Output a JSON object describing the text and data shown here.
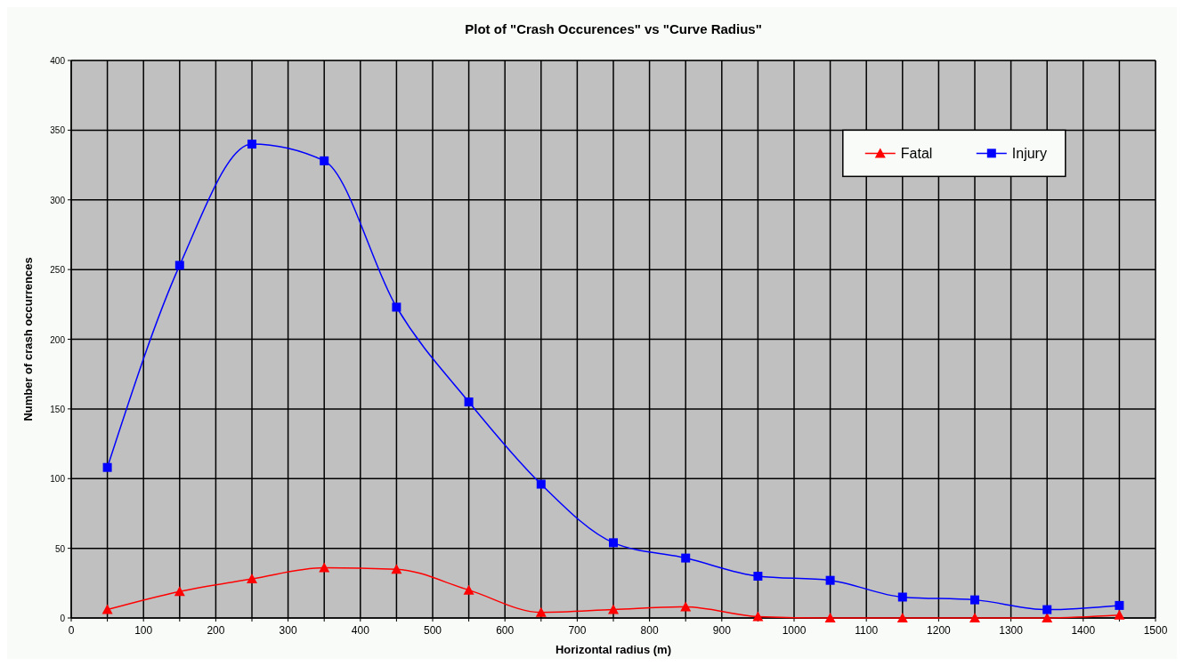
{
  "chart_data": {
    "type": "line",
    "title": "Plot of \"Crash Occurences\" vs \"Curve Radius\"",
    "xlabel": "Horizontal radius (m)",
    "ylabel": "Number of crash occurrences",
    "x": [
      50,
      150,
      250,
      350,
      450,
      550,
      650,
      750,
      850,
      950,
      1050,
      1150,
      1250,
      1350,
      1450
    ],
    "series": [
      {
        "name": "Fatal",
        "color": "#ff0000",
        "marker": "triangle",
        "values": [
          6,
          19,
          28,
          36,
          35,
          20,
          4,
          6,
          8,
          1,
          0,
          0,
          0,
          0,
          2
        ]
      },
      {
        "name": "Injury",
        "color": "#0000ff",
        "marker": "square",
        "values": [
          108,
          253,
          340,
          328,
          223,
          155,
          96,
          54,
          43,
          30,
          27,
          15,
          13,
          6,
          9
        ]
      }
    ],
    "xlim": [
      0,
      1500
    ],
    "xticks": [
      0,
      {
        "value": 50,
        "label": null
      },
      100,
      {
        "value": 150,
        "label": null
      },
      200,
      {
        "value": 250,
        "label": null
      },
      300,
      {
        "value": 350,
        "label": null
      },
      400,
      {
        "value": 450,
        "label": null
      },
      500,
      {
        "value": 550,
        "label": null
      },
      600,
      {
        "value": 650,
        "label": null
      },
      700,
      {
        "value": 750,
        "label": null
      },
      800,
      {
        "value": 850,
        "label": null
      },
      900,
      {
        "value": 950,
        "label": null
      },
      1000,
      {
        "value": 1050,
        "label": null
      },
      1100,
      {
        "value": 1150,
        "label": null
      },
      1200,
      {
        "value": 1250,
        "label": null
      },
      1300,
      {
        "value": 1350,
        "label": null
      },
      1400,
      {
        "value": 1450,
        "label": null
      },
      1500
    ],
    "ylim": [
      0,
      400
    ],
    "yticks": [
      0,
      50,
      100,
      150,
      200,
      250,
      300,
      350,
      400
    ],
    "grid": true,
    "legend": "top right",
    "line_style": "solid"
  }
}
